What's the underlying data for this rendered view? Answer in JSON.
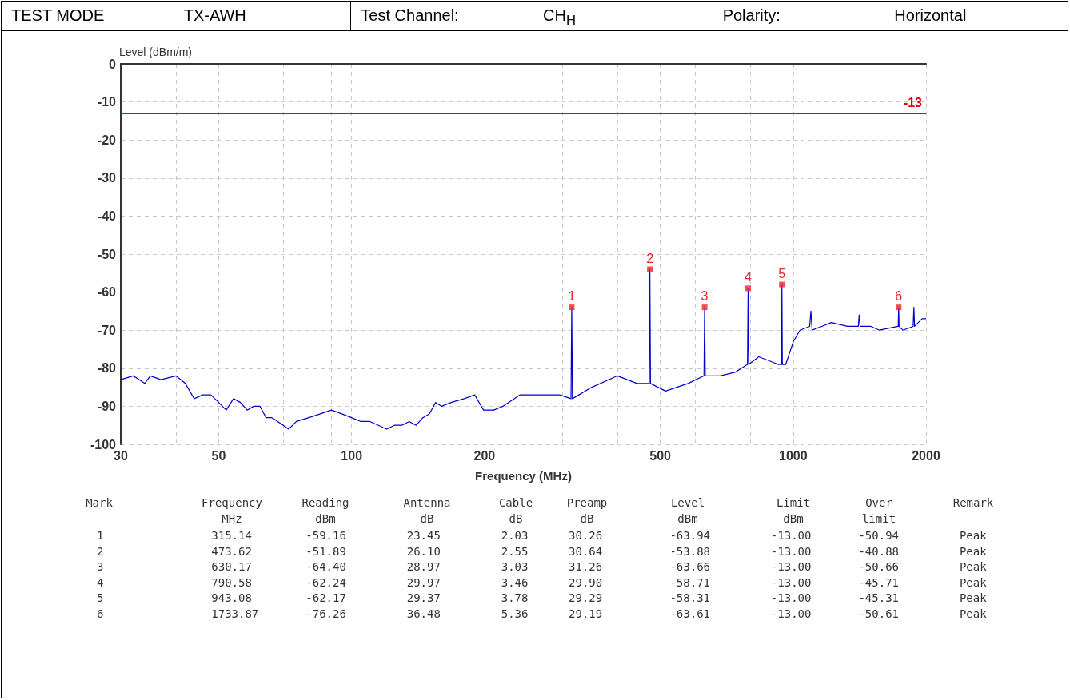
{
  "chart_data": [
    {
      "type": "other",
      "annotations": [
        "TEST MODE",
        "TX-AWH",
        "Test Channel:",
        "CH$_{H}$",
        "Polarity:",
        "Horizontal"
      ]
    },
    {
      "type": "line",
      "xlabel": "Frequency (MHz)",
      "ylabel": "Level (dBm/m)",
      "log": "x",
      "grid": true,
      "annotations": [
        {
          "text": "1",
          "x": 315.14,
          "y": -64
        },
        {
          "text": "2",
          "x": 473.62,
          "y": -54
        },
        {
          "text": "3",
          "x": 630.17,
          "y": -64
        },
        {
          "text": "4",
          "x": 790.58,
          "y": -59
        },
        {
          "text": "5",
          "x": 943.08,
          "y": -58
        },
        {
          "text": "6",
          "x": 1733.87,
          "y": -64
        }
      ],
      "xlim": [
        30,
        2000
      ],
      "xticks": [
        30,
        {
          "value": 40,
          "label": null
        },
        50,
        {
          "value": 60,
          "label": null
        },
        {
          "value": 70,
          "label": null
        },
        {
          "value": 80,
          "label": null
        },
        {
          "value": 90,
          "label": null
        },
        100,
        200,
        {
          "value": 300,
          "label": null
        },
        {
          "value": 400,
          "label": null
        },
        500,
        {
          "value": 600,
          "label": null
        },
        {
          "value": 700,
          "label": null
        },
        {
          "value": 800,
          "label": null
        },
        {
          "value": 900,
          "label": null
        },
        1000,
        2000
      ],
      "ylim": [
        -100,
        0
      ],
      "yticks": [
        -100,
        -90,
        -80,
        -70,
        -60,
        -50,
        -40,
        -30,
        -20,
        -10,
        0
      ],
      "ref_lines": [
        {
          "axis": "y",
          "value": -13,
          "label": "-13",
          "color": "#e00000",
          "line_style": "solid"
        }
      ],
      "series": [
        {
          "type": "line",
          "color": "#0000cc",
          "marker": "none",
          "x": [
            30,
            32,
            34,
            35,
            37,
            40,
            42,
            44,
            46,
            48,
            50,
            52,
            54,
            56,
            58,
            60,
            62,
            64,
            66,
            68,
            70,
            72,
            75,
            80,
            85,
            90,
            95,
            100,
            105,
            110,
            115,
            120,
            125,
            130,
            135,
            140,
            145,
            150,
            155,
            160,
            168,
            180,
            190,
            199,
            210,
            220,
            241,
            264,
            296,
            314,
            315.14,
            316.3,
            350,
            400,
            443,
            472,
            473.62,
            475.2,
            514,
            578,
            628,
            630.17,
            632.3,
            683,
            741,
            788,
            790.58,
            793.2,
            836,
            880,
            925,
            941,
            943.08,
            945.2,
            962,
            1001,
            1036,
            1090,
            1097,
            1104,
            1160,
            1220,
            1328,
            1405,
            1411,
            1418,
            1500,
            1568,
            1730,
            1733.87,
            1738,
            1772,
            1870,
            1877,
            1884,
            1960,
            2000
          ],
          "values": [
            -83,
            -82,
            -84,
            -82,
            -83,
            -82,
            -84,
            -88,
            -87,
            -87,
            -89,
            -91,
            -88,
            -89,
            -91,
            -90,
            -90,
            -93,
            -93,
            -94,
            -95,
            -96,
            -94,
            -93,
            -92,
            -91,
            -92,
            -93,
            -94,
            -94,
            -95,
            -96,
            -95,
            -95,
            -94,
            -95,
            -93,
            -92,
            -89,
            -90,
            -89,
            -88,
            -87,
            -91,
            -91,
            -90,
            -87,
            -87,
            -87,
            -88,
            -64,
            -88,
            -85,
            -82,
            -84,
            -84,
            -54,
            -84,
            -86,
            -84,
            -82,
            -64,
            -82,
            -82,
            -81,
            -79,
            -59,
            -79,
            -77,
            -78,
            -79,
            -79,
            -58,
            -79,
            -79,
            -73,
            -70,
            -69,
            -65,
            -70,
            -69,
            -68,
            -69,
            -69,
            -66,
            -69,
            -69,
            -70,
            -69,
            -64,
            -69,
            -70,
            -69,
            -64,
            -69,
            -67,
            -67
          ]
        },
        {
          "type": "scatter",
          "color": "#e8262a",
          "marker": "square",
          "x": [
            315.14,
            473.62,
            630.17,
            790.58,
            943.08,
            1733.87
          ],
          "values": [
            -64,
            -54,
            -64,
            -59,
            -58,
            -64
          ]
        }
      ]
    },
    {
      "type": "other",
      "annotations": [
        "Mark",
        "Frequency\nMHz",
        "Reading\ndBm",
        "Antenna\ndB",
        "Cable\ndB",
        "Preamp\ndB",
        "Level\ndBm",
        "Limit\ndBm",
        "Over\nlimit",
        "Remark",
        "1",
        "315.14",
        "-59.16",
        "23.45",
        "2.03",
        "30.26",
        "-63.94",
        "-13.00",
        "-50.94",
        "Peak",
        "2",
        "473.62",
        "-51.89",
        "26.10",
        "2.55",
        "30.64",
        "-53.88",
        "-13.00",
        "-40.88",
        "Peak",
        "3",
        "630.17",
        "-64.40",
        "28.97",
        "3.03",
        "31.26",
        "-63.66",
        "-13.00",
        "-50.66",
        "Peak",
        "4",
        "790.58",
        "-62.24",
        "29.97",
        "3.46",
        "29.90",
        "-58.71",
        "-13.00",
        "-45.71",
        "Peak",
        "5",
        "943.08",
        "-62.17",
        "29.37",
        "3.78",
        "29.29",
        "-58.31",
        "-13.00",
        "-45.31",
        "Peak",
        "6",
        "1733.87",
        "-76.26",
        "36.48",
        "5.36",
        "29.19",
        "-63.61",
        "-13.00",
        "-50.61",
        "Peak"
      ]
    }
  ]
}
